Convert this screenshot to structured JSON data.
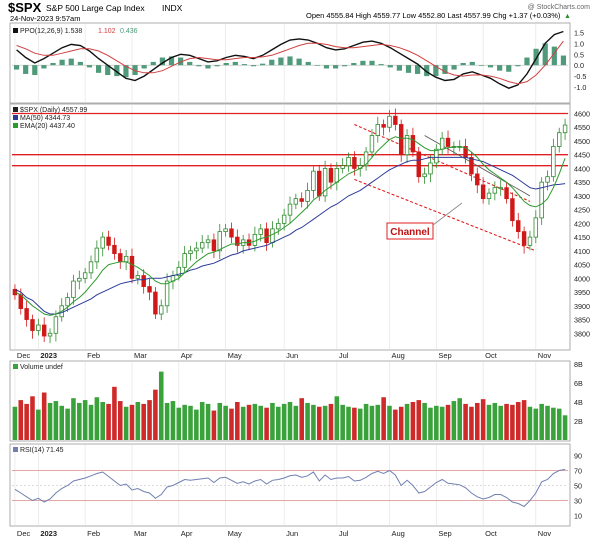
{
  "header": {
    "symbol": "$SPX",
    "name": "S&P 500 Large Cap Index",
    "exchange": "INDX",
    "date": "24-Nov-2023 9:57am",
    "quote": "Open 4555.84  High 4559.77  Low 4552.80  Last 4557.99  Chg +1.37 (+0.03%)",
    "quote_arrow": "▲",
    "watermark": "@ StockCharts.com"
  },
  "colors": {
    "up": "#2e8b2e",
    "down": "#d01818",
    "ma50": "#2b3a99",
    "ema20": "#2e9a2e",
    "hline": "#e02020",
    "channel": "#e02020",
    "volume_up": "#3aa23a",
    "volume_down": "#cf2a2a",
    "ppo": "#111111",
    "signal": "#d04040",
    "hist": "#4f9a7a",
    "rsi": "#7080b0"
  },
  "chart_data": [
    {
      "type": "line",
      "panel": "ppo",
      "title": "PPO(12,26,9) 1.538, 1.102, 0.436",
      "legend": [
        "PPO(12,26,9) 1.538",
        "1.102",
        "0.436"
      ],
      "ylim": [
        -1.5,
        1.7
      ],
      "yticks": [
        "1.5",
        "1.0",
        "0.5",
        "0.0",
        "-0.5",
        "-1.0"
      ],
      "series": [
        {
          "name": "PPO(12,26,9) 1.538",
          "values": [
            0.7,
            0.35,
            0.1,
            0.3,
            0.55,
            0.8,
            0.95,
            0.9,
            0.65,
            0.3,
            0.0,
            -0.3,
            -0.6,
            -0.7,
            -0.5,
            -0.2,
            0.1,
            0.35,
            0.5,
            0.45,
            0.3,
            0.15,
            0.2,
            0.35,
            0.45,
            0.4,
            0.3,
            0.45,
            0.7,
            0.95,
            1.15,
            1.2,
            1.15,
            1.0,
            0.8,
            0.7,
            0.75,
            0.9,
            1.05,
            1.1,
            1.0,
            0.8,
            0.55,
            0.3,
            0.05,
            -0.3,
            -0.55,
            -0.7,
            -0.65,
            -0.4,
            -0.3,
            -0.45,
            -0.6,
            -0.85,
            -1.05,
            -0.9,
            -0.4,
            0.3,
            1.0,
            1.4,
            1.54
          ]
        },
        {
          "name": "1.102",
          "values": [
            0.9,
            0.75,
            0.55,
            0.45,
            0.45,
            0.55,
            0.65,
            0.75,
            0.75,
            0.65,
            0.45,
            0.2,
            -0.05,
            -0.25,
            -0.35,
            -0.35,
            -0.25,
            -0.05,
            0.15,
            0.3,
            0.35,
            0.3,
            0.25,
            0.25,
            0.3,
            0.35,
            0.35,
            0.38,
            0.45,
            0.6,
            0.75,
            0.9,
            1.0,
            1.0,
            0.95,
            0.85,
            0.8,
            0.8,
            0.85,
            0.9,
            0.95,
            0.9,
            0.8,
            0.65,
            0.45,
            0.2,
            -0.05,
            -0.3,
            -0.45,
            -0.5,
            -0.45,
            -0.45,
            -0.5,
            -0.6,
            -0.75,
            -0.85,
            -0.75,
            -0.45,
            0.0,
            0.55,
            1.1
          ]
        }
      ],
      "histogram": [
        -0.2,
        -0.4,
        -0.45,
        -0.15,
        0.1,
        0.25,
        0.3,
        0.15,
        -0.1,
        -0.35,
        -0.45,
        -0.5,
        -0.55,
        -0.45,
        -0.15,
        0.15,
        0.35,
        0.4,
        0.35,
        0.15,
        -0.05,
        -0.15,
        -0.05,
        0.1,
        0.15,
        0.05,
        -0.05,
        0.07,
        0.25,
        0.35,
        0.4,
        0.3,
        0.15,
        0.0,
        -0.15,
        -0.15,
        -0.05,
        0.1,
        0.2,
        0.2,
        0.05,
        -0.1,
        -0.25,
        -0.35,
        -0.4,
        -0.5,
        -0.5,
        -0.4,
        -0.2,
        0.1,
        0.15,
        0.0,
        -0.1,
        -0.25,
        -0.3,
        -0.05,
        0.35,
        0.75,
        1.0,
        0.85,
        0.44
      ]
    },
    {
      "type": "line",
      "panel": "price",
      "title": "$SPX (Daily) 4557.99",
      "legend": [
        "$SPX (Daily) 4557.99",
        "MA(50) 4344.73",
        "EMA(20) 4437.40"
      ],
      "ylim": [
        3750,
        4620
      ],
      "yticks": [
        "4600",
        "4550",
        "4500",
        "4450",
        "4400",
        "4350",
        "4300",
        "4250",
        "4200",
        "4150",
        "4100",
        "4050",
        "4000",
        "3950",
        "3900",
        "3850",
        "3800"
      ],
      "x_labels": [
        "Dec",
        "2023",
        "Feb",
        "Mar",
        "Apr",
        "May",
        "Jun",
        "Jul",
        "Aug",
        "Sep",
        "Oct",
        "Nov"
      ],
      "close": [
        3940,
        3890,
        3850,
        3810,
        3830,
        3790,
        3800,
        3860,
        3900,
        3930,
        3990,
        4000,
        4020,
        4060,
        4110,
        4150,
        4120,
        4090,
        4060,
        4080,
        4000,
        4010,
        3970,
        3950,
        3870,
        3900,
        3990,
        4010,
        4040,
        4090,
        4100,
        4110,
        4130,
        4140,
        4100,
        4170,
        4180,
        4150,
        4120,
        4140,
        4120,
        4160,
        4180,
        4130,
        4180,
        4200,
        4230,
        4270,
        4290,
        4280,
        4320,
        4390,
        4300,
        4400,
        4350,
        4400,
        4410,
        4440,
        4400,
        4410,
        4460,
        4520,
        4560,
        4550,
        4590,
        4560,
        4450,
        4520,
        4460,
        4370,
        4380,
        4420,
        4470,
        4510,
        4480,
        4480,
        4480,
        4440,
        4380,
        4340,
        4290,
        4310,
        4330,
        4330,
        4290,
        4210,
        4170,
        4120,
        4150,
        4220,
        4350,
        4370,
        4480,
        4530,
        4557.99
      ],
      "series": [
        {
          "name": "MA(50) 4344.73",
          "values": [
            3960,
            3950,
            3930,
            3920,
            3900,
            3880,
            3870,
            3870,
            3875,
            3885,
            3895,
            3905,
            3915,
            3925,
            3940,
            3950,
            3960,
            3970,
            3980,
            3985,
            3990,
            3995,
            3995,
            4000,
            4000,
            4000,
            4005,
            4010,
            4015,
            4020,
            4030,
            4035,
            4045,
            4050,
            4055,
            4065,
            4075,
            4085,
            4090,
            4100,
            4105,
            4110,
            4115,
            4120,
            4130,
            4140,
            4150,
            4160,
            4175,
            4185,
            4200,
            4215,
            4230,
            4245,
            4260,
            4270,
            4285,
            4300,
            4310,
            4320,
            4335,
            4350,
            4365,
            4380,
            4395,
            4405,
            4415,
            4425,
            4430,
            4430,
            4435,
            4440,
            4440,
            4440,
            4440,
            4440,
            4440,
            4440,
            4435,
            4430,
            4425,
            4415,
            4405,
            4395,
            4385,
            4375,
            4360,
            4345,
            4330,
            4325,
            4330,
            4335,
            4340,
            4342,
            4344.73
          ]
        },
        {
          "name": "EMA(20) 4437.40",
          "values": [
            3950,
            3940,
            3920,
            3900,
            3885,
            3870,
            3865,
            3870,
            3880,
            3895,
            3915,
            3930,
            3950,
            3975,
            4000,
            4030,
            4050,
            4055,
            4060,
            4060,
            4050,
            4040,
            4025,
            4010,
            3990,
            3980,
            3980,
            3990,
            4000,
            4020,
            4040,
            4060,
            4075,
            4090,
            4095,
            4105,
            4115,
            4125,
            4125,
            4130,
            4130,
            4135,
            4145,
            4150,
            4160,
            4170,
            4185,
            4200,
            4220,
            4240,
            4260,
            4285,
            4300,
            4320,
            4335,
            4350,
            4365,
            4380,
            4390,
            4400,
            4415,
            4440,
            4465,
            4485,
            4505,
            4515,
            4510,
            4510,
            4505,
            4490,
            4475,
            4465,
            4465,
            4470,
            4475,
            4478,
            4480,
            4475,
            4460,
            4440,
            4415,
            4395,
            4380,
            4365,
            4350,
            4330,
            4305,
            4280,
            4265,
            4260,
            4270,
            4290,
            4330,
            4380,
            4437.4
          ]
        }
      ],
      "horizontal_lines": [
        4600,
        4450,
        4410
      ],
      "annotation": "Channel"
    },
    {
      "type": "bar",
      "panel": "volume",
      "title": "Volume undef",
      "ylim": [
        0,
        8
      ],
      "yticks": [
        "8B",
        "6B",
        "4B",
        "2B"
      ],
      "values": [
        3.5,
        4.2,
        3.8,
        4.6,
        3.2,
        5.0,
        3.9,
        4.1,
        3.6,
        3.3,
        4.4,
        3.9,
        4.2,
        3.7,
        4.5,
        4.0,
        3.8,
        5.6,
        4.1,
        3.5,
        3.7,
        4.0,
        3.8,
        4.2,
        5.3,
        7.2,
        3.9,
        4.1,
        3.4,
        3.7,
        3.6,
        3.2,
        4.0,
        3.8,
        3.1,
        3.9,
        3.6,
        3.3,
        4.0,
        3.5,
        3.7,
        3.8,
        3.6,
        3.4,
        3.9,
        3.5,
        3.8,
        4.0,
        3.6,
        4.4,
        3.9,
        3.7,
        3.5,
        3.6,
        3.8,
        4.6,
        3.7,
        3.5,
        3.4,
        3.3,
        3.8,
        3.6,
        3.7,
        4.5,
        3.6,
        3.2,
        3.5,
        3.8,
        4.0,
        4.2,
        3.9,
        3.4,
        3.6,
        3.5,
        3.7,
        4.1,
        4.4,
        3.8,
        3.5,
        3.9,
        4.3,
        3.7,
        3.9,
        3.6,
        3.8,
        3.7,
        4.0,
        4.2,
        3.5,
        3.3,
        3.8,
        3.6,
        3.4,
        3.3,
        2.6
      ]
    },
    {
      "type": "line",
      "panel": "rsi",
      "title": "RSI(14) 71.45",
      "ylim": [
        0,
        100
      ],
      "yticks": [
        "90",
        "70",
        "50",
        "30",
        "10"
      ],
      "values": [
        45,
        40,
        35,
        30,
        33,
        28,
        32,
        40,
        46,
        50,
        56,
        58,
        60,
        63,
        66,
        68,
        62,
        56,
        50,
        52,
        44,
        46,
        42,
        40,
        33,
        38,
        48,
        50,
        54,
        58,
        57,
        58,
        59,
        60,
        54,
        60,
        61,
        57,
        53,
        55,
        52,
        56,
        58,
        52,
        57,
        58,
        60,
        63,
        64,
        61,
        63,
        68,
        56,
        64,
        58,
        60,
        60,
        62,
        56,
        57,
        61,
        66,
        69,
        66,
        70,
        64,
        50,
        57,
        50,
        40,
        42,
        48,
        54,
        58,
        53,
        52,
        51,
        47,
        40,
        35,
        32,
        34,
        38,
        38,
        34,
        28,
        26,
        22,
        30,
        40,
        55,
        58,
        66,
        70,
        71.45
      ]
    }
  ]
}
